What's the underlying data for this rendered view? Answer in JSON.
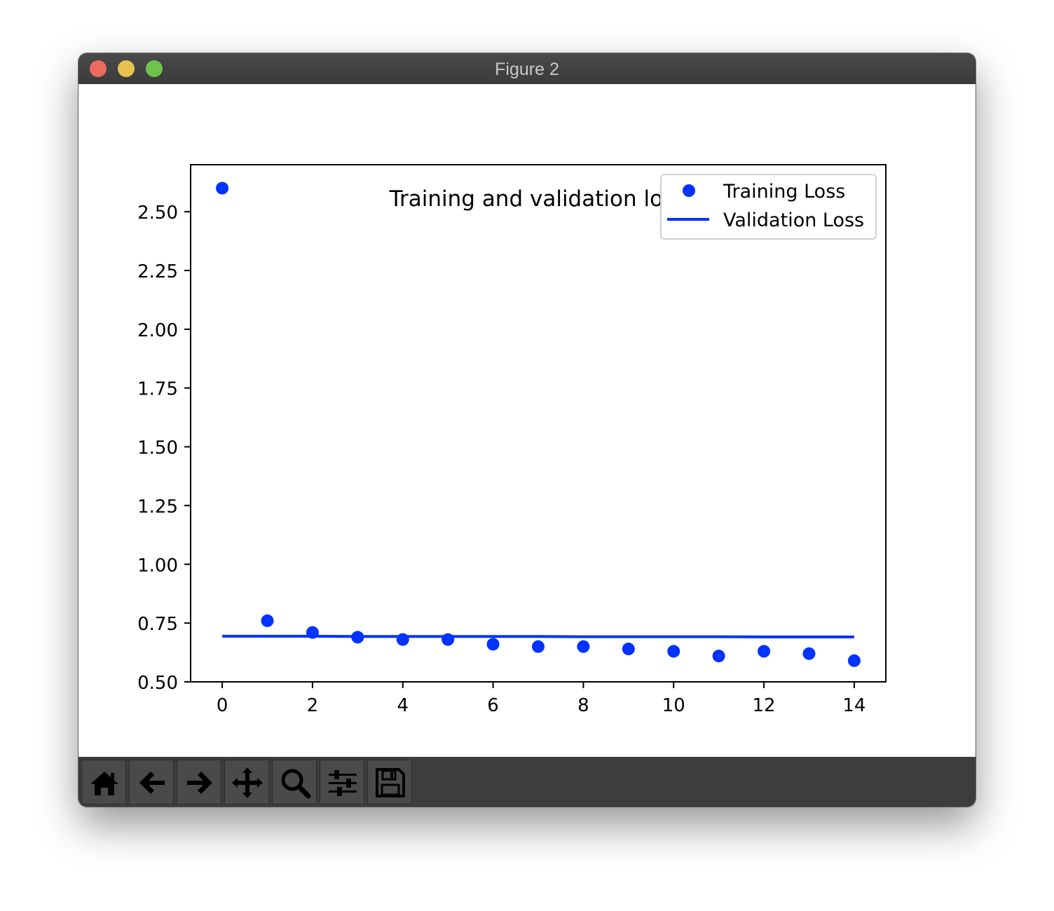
{
  "window": {
    "title": "Figure 2"
  },
  "toolbar": {
    "buttons": [
      {
        "name": "home",
        "icon": "home-icon"
      },
      {
        "name": "back",
        "icon": "arrow-left-icon"
      },
      {
        "name": "forward",
        "icon": "arrow-right-icon"
      },
      {
        "name": "pan",
        "icon": "move-icon"
      },
      {
        "name": "zoom",
        "icon": "magnifier-icon"
      },
      {
        "name": "configure-subplots",
        "icon": "sliders-icon"
      },
      {
        "name": "save",
        "icon": "floppy-disk-icon"
      }
    ]
  },
  "chart_data": {
    "type": "scatter",
    "title": "Training and validation loss",
    "xlabel": "",
    "ylabel": "",
    "xlim": [
      -0.7,
      14.7
    ],
    "ylim": [
      0.5,
      2.7
    ],
    "xticks": [
      0,
      2,
      4,
      6,
      8,
      10,
      12,
      14
    ],
    "xtick_labels": [
      "0",
      "2",
      "4",
      "6",
      "8",
      "10",
      "12",
      "14"
    ],
    "yticks": [
      0.5,
      0.75,
      1.0,
      1.25,
      1.5,
      1.75,
      2.0,
      2.25,
      2.5
    ],
    "ytick_labels": [
      "0.50",
      "0.75",
      "1.00",
      "1.25",
      "1.50",
      "1.75",
      "2.00",
      "2.25",
      "2.50"
    ],
    "grid": false,
    "legend_position": "top-right",
    "color": "#0033ff",
    "series": [
      {
        "name": "Training Loss",
        "style": "points",
        "x": [
          0,
          1,
          2,
          3,
          4,
          5,
          6,
          7,
          8,
          9,
          10,
          11,
          12,
          13,
          14
        ],
        "y": [
          2.6,
          0.76,
          0.71,
          0.69,
          0.68,
          0.68,
          0.66,
          0.65,
          0.65,
          0.64,
          0.63,
          0.61,
          0.63,
          0.62,
          0.59
        ]
      },
      {
        "name": "Validation Loss",
        "style": "line",
        "x": [
          0,
          1,
          2,
          3,
          4,
          5,
          6,
          7,
          8,
          9,
          10,
          11,
          12,
          13,
          14
        ],
        "y": [
          0.694,
          0.694,
          0.694,
          0.693,
          0.693,
          0.693,
          0.693,
          0.693,
          0.692,
          0.692,
          0.692,
          0.692,
          0.691,
          0.691,
          0.691
        ]
      }
    ]
  }
}
